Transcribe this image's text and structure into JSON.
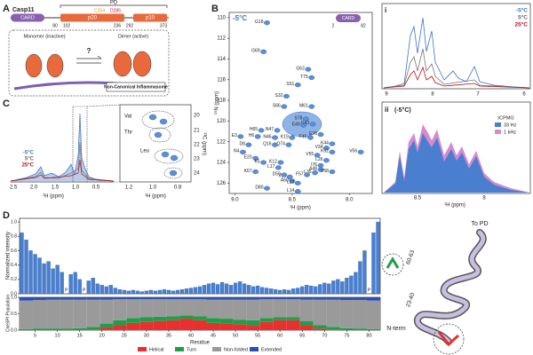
{
  "panels": {
    "A": {
      "letter": "A",
      "protein": "Casp11",
      "pd": "PD",
      "card": "CARD",
      "p20": "p20",
      "p10": "p10",
      "c254": "C254",
      "d285": "D285",
      "residues": [
        "80",
        "102",
        "236",
        "292",
        "373"
      ],
      "monomer": "Monomer (inactive)",
      "dimer": "Dimer (active)",
      "question": "?",
      "inflammasome": "Non-Canonical Inflammasome"
    },
    "B": {
      "letter": "B",
      "temp": "-5°C",
      "card": "CARD",
      "start": "2",
      "end": "82",
      "xlabel": "¹H (ppm)",
      "ylabel": "¹⁵N (ppm)"
    },
    "C": {
      "letter": "C",
      "legend": [
        "-5°C",
        "5°C",
        "25°C"
      ],
      "xticks": [
        "2.5",
        "2.0",
        "1.5",
        "1.0",
        "0.5"
      ],
      "xlabel": "¹H (ppm)",
      "inset_labels": [
        "Val",
        "Thr",
        "Leu"
      ],
      "inset_xticks": [
        "1.2",
        "1.0",
        "0.8"
      ],
      "inset_yticks": [
        "20",
        "21",
        "22",
        "23",
        "24"
      ],
      "inset_xlabel": "¹H (ppm)",
      "inset_ylabel": "¹³C (ppm)"
    },
    "i": {
      "letter": "i",
      "legend": [
        "-5°C",
        "5°C",
        "25°C"
      ],
      "xticks": [
        "9",
        "8",
        "7",
        "6"
      ]
    },
    "ii": {
      "letter": "ii",
      "temp": "(-5°C)",
      "legend_title": "τCPMG",
      "legend": [
        "33 Hz",
        "1 kHz"
      ],
      "xticks": [
        "8.5",
        "8"
      ],
      "xlabel": "¹H (ppm)"
    },
    "D": {
      "letter": "D",
      "to_pd": "To PD",
      "region1": "60-63",
      "region2": "23-40",
      "nterm": "N-term"
    }
  },
  "chart_data": [
    {
      "type": "scatter",
      "labels": [
        "G18",
        "G69",
        "G62",
        "T75",
        "S51",
        "S32",
        "S66",
        "M61",
        "S78",
        "G43",
        "H65",
        "N47",
        "E49",
        "E3",
        "H6",
        "N46",
        "K19",
        "F45",
        "E70",
        "Q74",
        "Q16",
        "D8",
        "N4",
        "K44",
        "V34",
        "K52",
        "V55",
        "E20",
        "K5",
        "L17",
        "K12",
        "L26",
        "I76",
        "A48",
        "V58",
        "L35",
        "K67",
        "F57",
        "V13",
        "D59",
        "A60",
        "L22",
        "D80",
        "L14",
        "V56"
      ],
      "x": [
        8.72,
        8.75,
        8.36,
        8.33,
        8.45,
        8.55,
        8.57,
        8.33,
        8.38,
        8.32,
        8.77,
        8.63,
        8.4,
        8.95,
        8.8,
        8.65,
        8.5,
        8.34,
        8.25,
        8.53,
        8.65,
        8.88,
        8.93,
        8.15,
        8.2,
        8.15,
        8.28,
        8.82,
        8.75,
        8.62,
        8.6,
        8.2,
        8.25,
        8.25,
        8.15,
        8.3,
        8.82,
        8.37,
        8.52,
        8.57,
        8.5,
        8.45,
        8.72,
        8.45,
        7.9
      ],
      "y": [
        110.5,
        113.3,
        115.0,
        115.8,
        116.5,
        117.6,
        118.6,
        118.6,
        119.8,
        120.3,
        120.9,
        120.9,
        120.4,
        121.5,
        121.5,
        121.6,
        121.6,
        121.6,
        121.3,
        122.3,
        122.3,
        122.3,
        123.0,
        122.2,
        122.6,
        123.0,
        123.3,
        123.6,
        124.0,
        124.5,
        124.0,
        123.8,
        124.3,
        124.7,
        124.9,
        125.0,
        124.9,
        125.2,
        125.4,
        125.2,
        125.8,
        126.0,
        126.5,
        126.8,
        123.0
      ],
      "color": "#5b8fd6",
      "xlim": [
        9.05,
        7.8
      ],
      "ylim": [
        109.5,
        127
      ],
      "xticks": [
        {
          "value": 9.0,
          "label": "9.0"
        },
        8.5,
        {
          "value": 8.0,
          "label": "8.0"
        }
      ],
      "yticks": [
        110,
        112,
        114,
        116,
        118,
        120,
        122,
        124,
        126
      ]
    },
    {
      "type": "bar",
      "ylabel": "Normalized intensity",
      "color": "#4a7fcf",
      "categories": [
        2,
        3,
        4,
        5,
        6,
        7,
        8,
        9,
        10,
        11,
        12,
        13,
        14,
        15,
        16,
        17,
        18,
        19,
        20,
        21,
        22,
        23,
        24,
        25,
        26,
        27,
        28,
        29,
        30,
        31,
        32,
        33,
        34,
        35,
        36,
        37,
        38,
        39,
        40,
        41,
        42,
        43,
        44,
        45,
        46,
        47,
        48,
        49,
        50,
        51,
        52,
        53,
        54,
        55,
        56,
        57,
        58,
        59,
        60,
        61,
        62,
        63,
        64,
        65,
        66,
        67,
        68,
        69,
        70,
        71,
        72,
        73,
        74,
        75,
        76,
        77,
        78,
        79,
        80,
        81,
        82
      ],
      "values": [
        0.85,
        0.75,
        0.6,
        0.55,
        0.5,
        0.42,
        0.45,
        0.35,
        0.4,
        0.3,
        0,
        0.27,
        0.3,
        0.2,
        0,
        0.18,
        0.22,
        0.14,
        0.12,
        0.1,
        0.12,
        0.08,
        0.06,
        0.05,
        0.04,
        0.05,
        0.04,
        0.03,
        0.04,
        0.05,
        0.04,
        0.05,
        0.06,
        0.05,
        0.04,
        0.05,
        0.06,
        0.07,
        0.08,
        0.09,
        0.1,
        0.12,
        0.14,
        0.15,
        0.13,
        0.16,
        0.14,
        0.12,
        0.15,
        0.17,
        0.14,
        0.12,
        0.1,
        0.11,
        0.09,
        0.08,
        0.07,
        0.06,
        0.05,
        0.06,
        0.05,
        0.07,
        0.08,
        0.1,
        0.12,
        0.11,
        0.1,
        0.13,
        0.15,
        0.14,
        0.18,
        0.2,
        0.17,
        0.22,
        0.25,
        0.3,
        0.45,
        0.6,
        0,
        0.85,
        1.0
      ],
      "annotations": [
        {
          "residue": 12,
          "text": "P"
        },
        {
          "residue": 16,
          "text": "P"
        },
        {
          "residue": 80,
          "text": "P"
        }
      ],
      "xlim": [
        1.5,
        82.5
      ],
      "ylim": [
        0,
        1.05
      ],
      "yticks": [
        {
          "value": 0,
          "label": "0.0"
        },
        0.2,
        0.4,
        0.6,
        0.8,
        {
          "value": 1,
          "label": "1.0"
        }
      ]
    },
    {
      "type": "stacked_histogram",
      "ylabel": "CheSPI Population",
      "xlabel": "Residue",
      "bins": [
        1.5,
        4.5,
        7.5,
        10.5,
        13.5,
        16.5,
        19.5,
        22.5,
        25.5,
        28.5,
        31.5,
        34.5,
        37.5,
        40.5,
        43.5,
        46.5,
        49.5,
        52.5,
        55.5,
        58.5,
        61.5,
        64.5,
        67.5,
        70.5,
        73.5,
        76.5,
        79.5,
        82.5
      ],
      "series": [
        {
          "name": "Helical",
          "color": "#e8312f",
          "values": [
            0,
            0,
            0,
            0,
            0,
            0.02,
            0.08,
            0.15,
            0.22,
            0.25,
            0.28,
            0.3,
            0.35,
            0.3,
            0.22,
            0.2,
            0.18,
            0.15,
            0.25,
            0.3,
            0.3,
            0.15,
            0.05,
            0.02,
            0,
            0,
            0
          ]
        },
        {
          "name": "Turn",
          "color": "#1f9e4a",
          "values": [
            0.03,
            0.05,
            0.05,
            0.05,
            0.06,
            0.08,
            0.12,
            0.15,
            0.15,
            0.15,
            0.13,
            0.12,
            0.1,
            0.12,
            0.15,
            0.15,
            0.14,
            0.15,
            0.12,
            0.1,
            0.1,
            0.12,
            0.1,
            0.08,
            0.06,
            0.05,
            0.03
          ]
        },
        {
          "name": "Non-folded",
          "color": "#9a9a9a",
          "values": [
            0.87,
            0.87,
            0.88,
            0.88,
            0.87,
            0.83,
            0.73,
            0.64,
            0.57,
            0.54,
            0.53,
            0.52,
            0.49,
            0.52,
            0.56,
            0.58,
            0.61,
            0.63,
            0.57,
            0.54,
            0.54,
            0.66,
            0.78,
            0.83,
            0.86,
            0.87,
            0.87
          ]
        },
        {
          "name": "Extended",
          "color": "#2b4fb5",
          "values": [
            0.1,
            0.08,
            0.07,
            0.07,
            0.07,
            0.07,
            0.07,
            0.06,
            0.06,
            0.06,
            0.06,
            0.06,
            0.06,
            0.06,
            0.07,
            0.07,
            0.07,
            0.07,
            0.06,
            0.06,
            0.06,
            0.07,
            0.07,
            0.07,
            0.08,
            0.08,
            0.1
          ]
        }
      ],
      "xlim": [
        1.5,
        82.5
      ],
      "ylim": [
        0,
        1
      ],
      "xticks": [
        5,
        10,
        15,
        20,
        25,
        30,
        35,
        40,
        45,
        50,
        55,
        60,
        65,
        70,
        75,
        80
      ],
      "yticks": [
        {
          "value": 0,
          "label": "0.0"
        },
        0.5,
        {
          "value": 1,
          "label": "1.0"
        }
      ]
    }
  ]
}
